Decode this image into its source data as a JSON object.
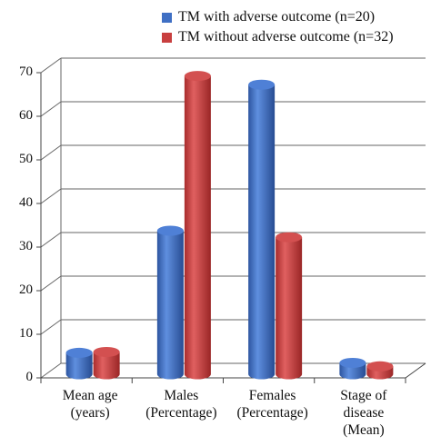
{
  "chart_data": {
    "type": "bar",
    "categories": [
      "Mean age\n(years)",
      "Males\n(Percentage)",
      "Females\n(Percentage)",
      "Stage of\ndisease\n(Mean)"
    ],
    "series": [
      {
        "name": "TM with adverse outcome (n=20)",
        "color": "#3f6fc4",
        "values": [
          4.5,
          32.5,
          66.0,
          2.2
        ]
      },
      {
        "name": "TM without adverse outcome (n=32)",
        "color": "#c83f3f",
        "values": [
          4.7,
          68.0,
          31.0,
          1.4
        ]
      }
    ],
    "y_ticks": [
      "0",
      "10",
      "20",
      "30",
      "40",
      "50",
      "60",
      "70"
    ],
    "ylim": [
      0,
      70
    ],
    "grid": true,
    "legend_position": "top-right",
    "style": "3d-cylinder"
  }
}
